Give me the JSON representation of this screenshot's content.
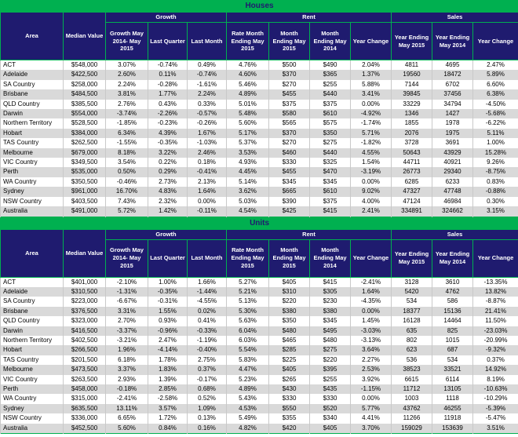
{
  "colors": {
    "accent_green": "#00B050",
    "header_navy": "#1F1B6F",
    "alt_row_gray": "#D9D9D9",
    "text_black": "#000000",
    "header_text_white": "#FFFFFF"
  },
  "tables": [
    {
      "title": "Houses",
      "header": {
        "area": "Area",
        "median": "Median Value",
        "groups": {
          "growth": "Growth",
          "rent": "Rent",
          "sales": "Sales"
        },
        "growth_cols": [
          "Growth May 2014- May 2015",
          "Last Quarter",
          "Last Month"
        ],
        "rent_cols": [
          "Rate Month Ending May 2015",
          "Month Ending May 2015",
          "Month Ending May 2014",
          "Year Change"
        ],
        "sales_cols": [
          "Year Ending May 2015",
          "Year Ending May 2014",
          "Year Change"
        ]
      },
      "rows": [
        [
          "ACT",
          "$548,000",
          "3.07%",
          "-0.74%",
          "0.49%",
          "4.76%",
          "$500",
          "$490",
          "2.04%",
          "4811",
          "4695",
          "2.47%"
        ],
        [
          "Adelaide",
          "$422,500",
          "2.60%",
          "0.11%",
          "-0.74%",
          "4.60%",
          "$370",
          "$365",
          "1.37%",
          "19560",
          "18472",
          "5.89%"
        ],
        [
          "SA Country",
          "$258,000",
          "2.24%",
          "-0.28%",
          "-1.61%",
          "5.46%",
          "$270",
          "$255",
          "5.88%",
          "7144",
          "6702",
          "6.60%"
        ],
        [
          "Brisbane",
          "$484,500",
          "3.81%",
          "1.77%",
          "2.24%",
          "4.89%",
          "$455",
          "$440",
          "3.41%",
          "39845",
          "37456",
          "6.38%"
        ],
        [
          "QLD Country",
          "$385,500",
          "2.76%",
          "0.43%",
          "0.33%",
          "5.01%",
          "$375",
          "$375",
          "0.00%",
          "33229",
          "34794",
          "-4.50%"
        ],
        [
          "Darwin",
          "$554,000",
          "-3.74%",
          "-2.26%",
          "-0.57%",
          "5.48%",
          "$580",
          "$610",
          "-4.92%",
          "1346",
          "1427",
          "-5.68%"
        ],
        [
          "Northern Territory",
          "$528,500",
          "-1.85%",
          "-0.23%",
          "-0.26%",
          "5.60%",
          "$565",
          "$575",
          "-1.74%",
          "1855",
          "1978",
          "-6.22%"
        ],
        [
          "Hobart",
          "$384,000",
          "6.34%",
          "4.39%",
          "1.67%",
          "5.17%",
          "$370",
          "$350",
          "5.71%",
          "2076",
          "1975",
          "5.11%"
        ],
        [
          "TAS Country",
          "$262,500",
          "-1.55%",
          "-0.35%",
          "-1.03%",
          "5.37%",
          "$270",
          "$275",
          "-1.82%",
          "3728",
          "3691",
          "1.00%"
        ],
        [
          "Melbourne",
          "$679,000",
          "8.18%",
          "3.22%",
          "2.46%",
          "3.53%",
          "$460",
          "$440",
          "4.55%",
          "50643",
          "43929",
          "15.28%"
        ],
        [
          "VIC Country",
          "$349,500",
          "3.54%",
          "0.22%",
          "0.18%",
          "4.93%",
          "$330",
          "$325",
          "1.54%",
          "44711",
          "40921",
          "9.26%"
        ],
        [
          "Perth",
          "$535,000",
          "0.50%",
          "0.29%",
          "-0.41%",
          "4.45%",
          "$455",
          "$470",
          "-3.19%",
          "26773",
          "29340",
          "-8.75%"
        ],
        [
          "WA Country",
          "$350,500",
          "-0.46%",
          "2.73%",
          "2.13%",
          "5.14%",
          "$345",
          "$345",
          "0.00%",
          "6285",
          "6233",
          "0.83%"
        ],
        [
          "Sydney",
          "$961,000",
          "16.70%",
          "4.83%",
          "1.64%",
          "3.62%",
          "$665",
          "$610",
          "9.02%",
          "47327",
          "47748",
          "-0.88%"
        ],
        [
          "NSW Country",
          "$403,500",
          "7.43%",
          "2.32%",
          "0.00%",
          "5.03%",
          "$390",
          "$375",
          "4.00%",
          "47124",
          "46984",
          "0.30%"
        ],
        [
          "Australia",
          "$491,000",
          "5.72%",
          "1.42%",
          "-0.11%",
          "4.54%",
          "$425",
          "$415",
          "2.41%",
          "334891",
          "324662",
          "3.15%"
        ]
      ]
    },
    {
      "title": "Units",
      "header": {
        "area": "Area",
        "median": "Median Value",
        "groups": {
          "growth": "Growth",
          "rent": "Rent",
          "sales": "Sales"
        },
        "growth_cols": [
          "Growth May 2014- May 2015",
          "Last Quarter",
          "Last Month"
        ],
        "rent_cols": [
          "Rate Month Ending May 2015",
          "Month Ending May 2015",
          "Month Ending May 2014",
          "Year Change"
        ],
        "sales_cols": [
          "Year Ending May 2015",
          "Year Ending May 2014",
          "Year Change"
        ]
      },
      "rows": [
        [
          "ACT",
          "$401,000",
          "-2.10%",
          "1.00%",
          "1.66%",
          "5.27%",
          "$405",
          "$415",
          "-2.41%",
          "3128",
          "3610",
          "-13.35%"
        ],
        [
          "Adelaide",
          "$310,500",
          "-1.31%",
          "-0.35%",
          "-1.44%",
          "5.21%",
          "$310",
          "$305",
          "1.64%",
          "5420",
          "4762",
          "13.82%"
        ],
        [
          "SA Country",
          "$223,000",
          "-6.67%",
          "-0.31%",
          "-4.55%",
          "5.13%",
          "$220",
          "$230",
          "-4.35%",
          "534",
          "586",
          "-8.87%"
        ],
        [
          "Brisbane",
          "$376,500",
          "3.31%",
          "1.55%",
          "0.02%",
          "5.30%",
          "$380",
          "$380",
          "0.00%",
          "18377",
          "15136",
          "21.41%"
        ],
        [
          "QLD Country",
          "$323,000",
          "2.70%",
          "0.93%",
          "0.41%",
          "5.63%",
          "$350",
          "$345",
          "1.45%",
          "16128",
          "14464",
          "11.50%"
        ],
        [
          "Darwin",
          "$416,500",
          "-3.37%",
          "-0.96%",
          "-0.33%",
          "6.04%",
          "$480",
          "$495",
          "-3.03%",
          "635",
          "825",
          "-23.03%"
        ],
        [
          "Northern Territory",
          "$402,500",
          "-3.21%",
          "2.47%",
          "-1.19%",
          "6.03%",
          "$465",
          "$480",
          "-3.13%",
          "802",
          "1015",
          "-20.99%"
        ],
        [
          "Hobart",
          "$266,500",
          "1.96%",
          "-4.14%",
          "-0.40%",
          "5.54%",
          "$285",
          "$275",
          "3.64%",
          "623",
          "687",
          "-9.32%"
        ],
        [
          "TAS Country",
          "$201,500",
          "6.18%",
          "1.78%",
          "2.75%",
          "5.83%",
          "$225",
          "$220",
          "2.27%",
          "536",
          "534",
          "0.37%"
        ],
        [
          "Melbourne",
          "$473,500",
          "3.37%",
          "1.83%",
          "0.37%",
          "4.47%",
          "$405",
          "$395",
          "2.53%",
          "38523",
          "33521",
          "14.92%"
        ],
        [
          "VIC Country",
          "$263,500",
          "2.93%",
          "1.39%",
          "-0.17%",
          "5.23%",
          "$265",
          "$255",
          "3.92%",
          "6615",
          "6114",
          "8.19%"
        ],
        [
          "Perth",
          "$458,000",
          "-0.18%",
          "2.85%",
          "0.68%",
          "4.89%",
          "$430",
          "$435",
          "-1.15%",
          "11712",
          "13105",
          "-10.63%"
        ],
        [
          "WA Country",
          "$315,000",
          "-2.41%",
          "-2.58%",
          "0.52%",
          "5.43%",
          "$330",
          "$330",
          "0.00%",
          "1003",
          "1118",
          "-10.29%"
        ],
        [
          "Sydney",
          "$635,500",
          "13.11%",
          "3.57%",
          "1.09%",
          "4.53%",
          "$550",
          "$520",
          "5.77%",
          "43762",
          "46255",
          "-5.39%"
        ],
        [
          "NSW Country",
          "$336,000",
          "6.65%",
          "1.72%",
          "0.13%",
          "5.49%",
          "$355",
          "$340",
          "4.41%",
          "11266",
          "11918",
          "-5.47%"
        ],
        [
          "Australia",
          "$452,500",
          "5.60%",
          "0.84%",
          "0.16%",
          "4.82%",
          "$420",
          "$405",
          "3.70%",
          "159029",
          "153639",
          "3.51%"
        ]
      ]
    }
  ]
}
